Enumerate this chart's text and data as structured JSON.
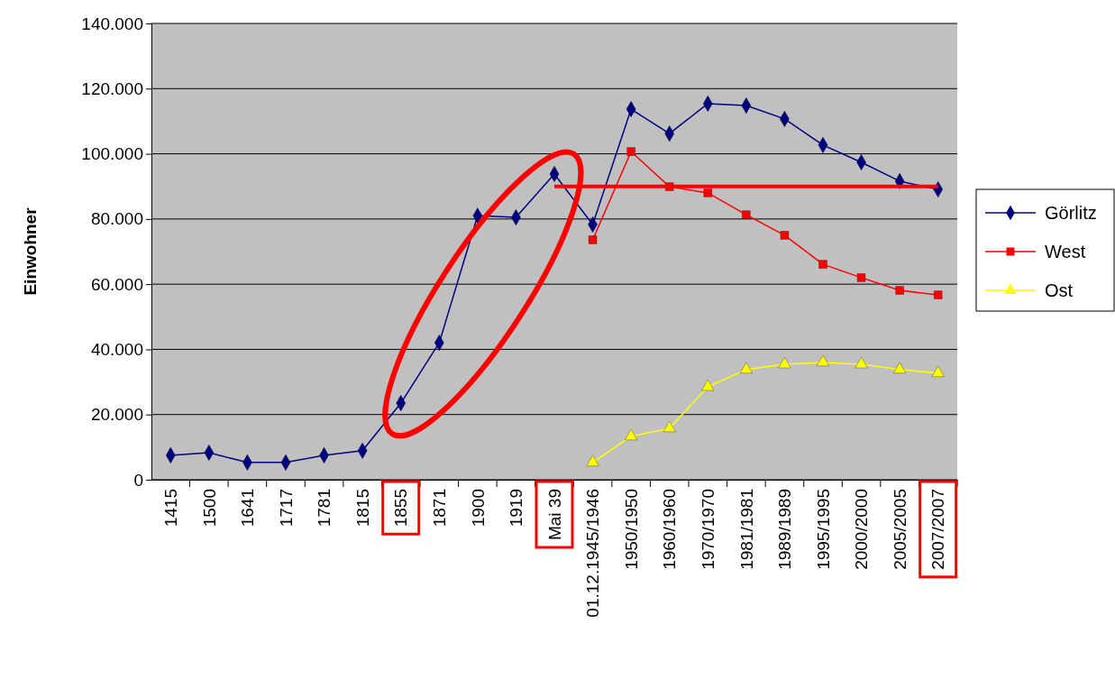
{
  "chart_data": {
    "type": "line",
    "ylabel": "Einwohner",
    "categories": [
      "1415",
      "1500",
      "1641",
      "1717",
      "1781",
      "1815",
      "1855",
      "1871",
      "1900",
      "1919",
      "Mai 39",
      "01.12.1945/1946",
      "1950/1950",
      "1960/1960",
      "1970/1970",
      "1981/1981",
      "1989/1989",
      "1995/1995",
      "2000/2000",
      "2005/2005",
      "2007/2007"
    ],
    "series": [
      {
        "name": "Görlitz",
        "color": "#000080",
        "marker": "diamond",
        "values": [
          7500,
          8300,
          5300,
          5300,
          7500,
          8900,
          23500,
          42000,
          81000,
          80500,
          93800,
          78300,
          113700,
          106200,
          115400,
          114800,
          110700,
          102700,
          97400,
          91600,
          89100
        ]
      },
      {
        "name": "West",
        "color": "#ff0000",
        "marker": "square",
        "values": [
          null,
          null,
          null,
          null,
          null,
          null,
          null,
          null,
          null,
          null,
          null,
          73600,
          100700,
          89900,
          88000,
          81300,
          75000,
          66100,
          62000,
          58100,
          56700
        ]
      },
      {
        "name": "Ost",
        "color": "#ffff00",
        "marker": "triangle",
        "values": [
          null,
          null,
          null,
          null,
          null,
          null,
          null,
          null,
          null,
          null,
          null,
          5300,
          13300,
          15800,
          28500,
          33800,
          35400,
          36000,
          35400,
          33800,
          32700
        ]
      },
      {
        "color": "#ff0000",
        "marker": "none",
        "values": [
          null,
          null,
          null,
          null,
          null,
          null,
          null,
          null,
          null,
          null,
          90000,
          90000,
          90000,
          90000,
          90000,
          90000,
          90000,
          90000,
          90000,
          90000,
          90000
        ]
      }
    ],
    "ylim": [
      0,
      140000
    ],
    "yticks": [
      0,
      {
        "value": 20000,
        "label": "20.000"
      },
      {
        "value": 40000,
        "label": "40.000"
      },
      {
        "value": 60000,
        "label": "60.000"
      },
      {
        "value": 80000,
        "label": "80.000"
      },
      {
        "value": 100000,
        "label": "100.000"
      },
      {
        "value": 120000,
        "label": "120.000"
      },
      {
        "value": 140000,
        "label": "140.000"
      }
    ],
    "grid": "y",
    "legend": "right"
  }
}
